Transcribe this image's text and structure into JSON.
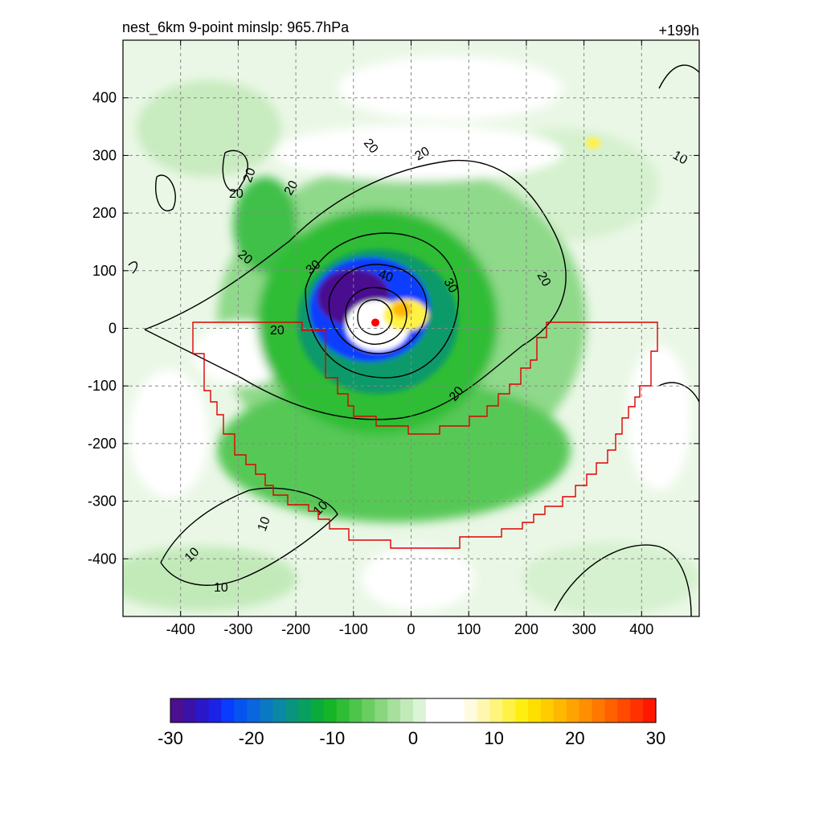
{
  "chart_data": {
    "type": "heatmap",
    "title": "nest_6km  9-point minslp: 965.7hPa",
    "time_label": "+199h",
    "xlim": [
      -500,
      500
    ],
    "ylim": [
      -500,
      500
    ],
    "x_ticks": [
      -400,
      -300,
      -200,
      -100,
      0,
      100,
      200,
      300,
      400
    ],
    "y_ticks": [
      400,
      300,
      200,
      100,
      0,
      -100,
      -200,
      -300,
      -400
    ],
    "grid": true,
    "colorbar": {
      "min": -30,
      "max": 30,
      "ticks": [
        -30,
        -20,
        -10,
        0,
        10,
        20,
        30
      ],
      "colors": [
        "#4b0f8f",
        "#3a12a8",
        "#2a18c8",
        "#1c22e6",
        "#0a3cff",
        "#0654f0",
        "#0a66dc",
        "#0b78c3",
        "#0a88a6",
        "#0a9480",
        "#08a060",
        "#0aab3c",
        "#16b528",
        "#2fbd36",
        "#4cc54a",
        "#6acd62",
        "#88d67e",
        "#a6e09c",
        "#c2eab9",
        "#dcf4d6",
        "#ffffff",
        "#ffffff",
        "#ffffff",
        "#fffbe0",
        "#fff7b0",
        "#fff47c",
        "#fff244",
        "#ffef10",
        "#ffdf00",
        "#ffcc00",
        "#ffb800",
        "#ffa300",
        "#ff8e00",
        "#ff7800",
        "#ff6100",
        "#ff4a00",
        "#ff3100",
        "#ff1700"
      ]
    },
    "contour_labels": [
      "20",
      "20",
      "20",
      "20",
      "20",
      "20",
      "20",
      "20",
      "30",
      "30",
      "40",
      "10",
      "10",
      "10",
      "10",
      "10",
      "20"
    ],
    "center_marker": {
      "x": -62,
      "y": 10,
      "color": "#ff0000"
    },
    "region_outline_color": "#e00000"
  }
}
